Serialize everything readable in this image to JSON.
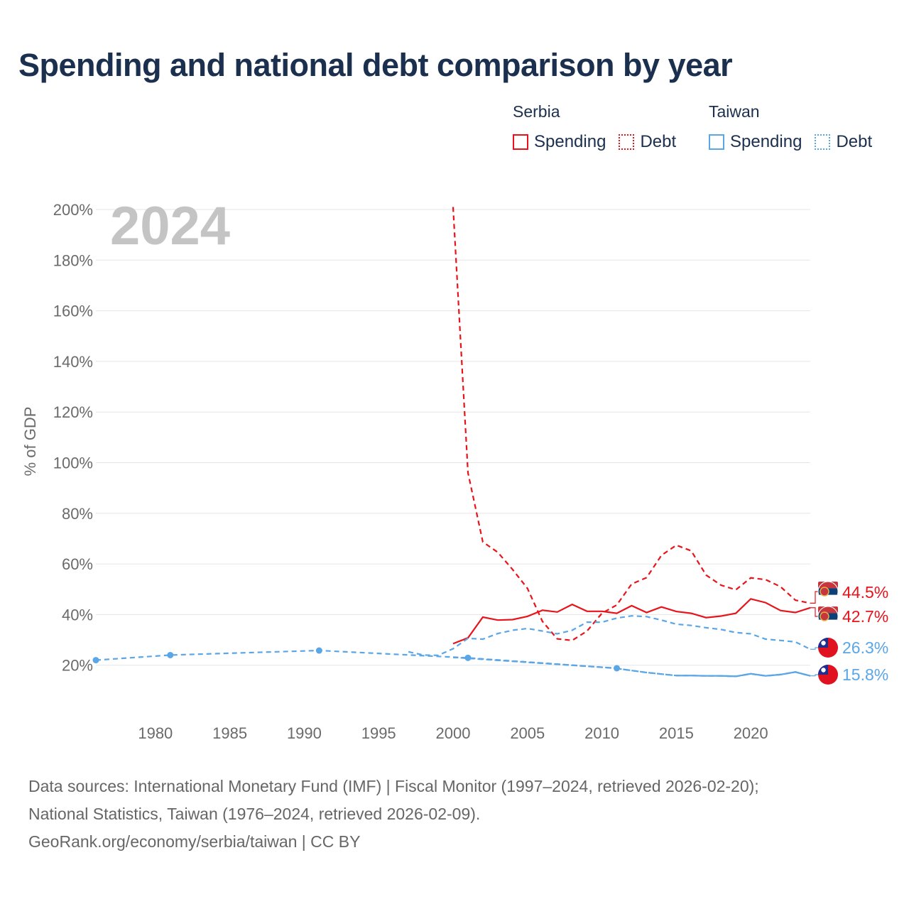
{
  "title": "Spending and national debt comparison by year",
  "legend": {
    "groups": [
      {
        "name": "Serbia",
        "color": "#e8141b",
        "spending_label": "Spending",
        "debt_label": "Debt"
      },
      {
        "name": "Taiwan",
        "color": "#5aa6e6",
        "spending_label": "Spending",
        "debt_label": "Debt"
      }
    ]
  },
  "footer": {
    "line1": "Data sources: International Monetary Fund (IMF) | Fiscal Monitor (1997–2024, retrieved 2026-02-20);",
    "line2": "National Statistics, Taiwan (1976–2024, retrieved 2026-02-09).",
    "line3": "GeoRank.org/economy/serbia/taiwan | CC BY"
  },
  "chart_data": {
    "type": "line",
    "title": "Spending and national debt comparison by year",
    "xlabel": "",
    "ylabel": "% of GDP",
    "xlim": [
      1976,
      2024
    ],
    "ylim": [
      0,
      200
    ],
    "x_ticks": [
      1980,
      1985,
      1990,
      1995,
      2000,
      2005,
      2010,
      2015,
      2020
    ],
    "y_ticks": [
      20,
      40,
      60,
      80,
      100,
      120,
      140,
      160,
      180,
      200
    ],
    "y_tick_labels": [
      "20%",
      "40%",
      "60%",
      "80%",
      "100%",
      "120%",
      "140%",
      "160%",
      "180%",
      "200%"
    ],
    "grid": true,
    "year_label": "2024",
    "series": [
      {
        "name": "Serbia Spending",
        "country": "Serbia",
        "metric": "Spending",
        "color": "#e8141b",
        "dash": "solid",
        "end_label": "42.7%",
        "x": [
          2000,
          2001,
          2002,
          2003,
          2004,
          2005,
          2006,
          2007,
          2008,
          2009,
          2010,
          2011,
          2012,
          2013,
          2014,
          2015,
          2016,
          2017,
          2018,
          2019,
          2020,
          2021,
          2022,
          2023,
          2024
        ],
        "values": [
          28.5,
          30.8,
          39.0,
          37.8,
          38.0,
          39.3,
          41.7,
          41.0,
          44.0,
          41.3,
          41.3,
          40.5,
          43.5,
          40.8,
          43.0,
          41.2,
          40.5,
          38.8,
          39.4,
          40.5,
          46.2,
          44.7,
          41.6,
          40.8,
          42.7
        ]
      },
      {
        "name": "Serbia Debt",
        "country": "Serbia",
        "metric": "Debt",
        "color": "#e8141b",
        "dash": "dashed",
        "end_label": "44.5%",
        "x": [
          2000,
          2001,
          2002,
          2003,
          2004,
          2005,
          2006,
          2007,
          2008,
          2009,
          2010,
          2011,
          2012,
          2013,
          2014,
          2015,
          2016,
          2017,
          2018,
          2019,
          2020,
          2021,
          2022,
          2023,
          2024
        ],
        "values": [
          201.0,
          96.0,
          68.7,
          64.6,
          57.8,
          50.3,
          37.3,
          30.4,
          29.8,
          33.5,
          40.5,
          43.8,
          52.1,
          54.6,
          63.4,
          67.4,
          65.2,
          55.6,
          51.6,
          49.8,
          54.5,
          53.8,
          51.0,
          45.7,
          44.5
        ]
      },
      {
        "name": "Taiwan Spending",
        "country": "Taiwan",
        "metric": "Spending",
        "color": "#5aa6e6",
        "dash": "solid",
        "end_label": "15.8%",
        "x": [
          2000,
          2001,
          2002,
          2003,
          2004,
          2005,
          2006,
          2007,
          2008,
          2009,
          2010,
          2011,
          2012,
          2013,
          2014,
          2015,
          2016,
          2017,
          2018,
          2019,
          2020,
          2021,
          2022,
          2023,
          2024
        ],
        "values": [
          23.1,
          22.8,
          22.4,
          22.0,
          21.6,
          21.2,
          20.8,
          20.4,
          20.0,
          19.6,
          19.2,
          18.7,
          17.9,
          17.1,
          16.5,
          15.9,
          15.9,
          15.8,
          15.8,
          15.6,
          16.6,
          15.8,
          16.3,
          17.3,
          15.8
        ],
        "pre_x": [
          1976,
          1981,
          1991,
          2001,
          2011
        ],
        "pre_values": [
          22.0,
          24.0,
          25.8,
          22.9,
          18.8
        ]
      },
      {
        "name": "Taiwan Debt",
        "country": "Taiwan",
        "metric": "Debt",
        "color": "#5aa6e6",
        "dash": "dashed",
        "end_label": "26.3%",
        "x": [
          1997,
          1998,
          1999,
          2000,
          2001,
          2002,
          2003,
          2004,
          2005,
          2006,
          2007,
          2008,
          2009,
          2010,
          2011,
          2012,
          2013,
          2014,
          2015,
          2016,
          2017,
          2018,
          2019,
          2020,
          2021,
          2022,
          2023,
          2024
        ],
        "values": [
          25.3,
          24.0,
          23.9,
          26.5,
          30.6,
          30.3,
          32.5,
          33.8,
          34.5,
          33.5,
          32.4,
          33.8,
          37.0,
          37.0,
          38.6,
          39.5,
          39.2,
          37.8,
          36.2,
          35.7,
          34.8,
          34.1,
          32.9,
          32.4,
          30.3,
          29.8,
          29.2,
          26.3
        ]
      }
    ]
  }
}
